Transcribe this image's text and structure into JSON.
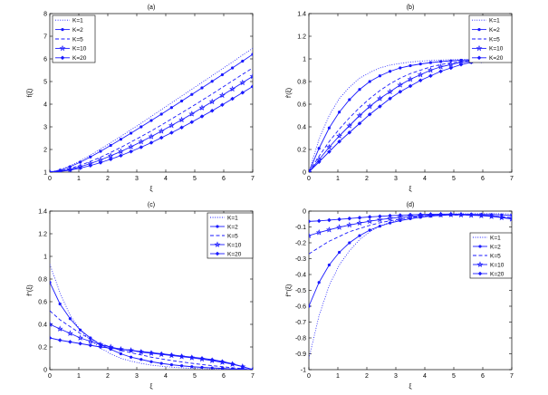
{
  "chart_data": [
    {
      "type": "line",
      "title": "(a)",
      "xlabel": "ξ",
      "ylabel": "f(ξ)",
      "xlim": [
        0,
        7
      ],
      "ylim": [
        1,
        8
      ],
      "xticks": [
        0,
        1,
        2,
        3,
        4,
        5,
        6,
        7
      ],
      "yticks": [
        1,
        2,
        3,
        4,
        5,
        6,
        7,
        8
      ],
      "legend_position": "top-left",
      "grid": false,
      "x": [
        0,
        0.35,
        0.7,
        1.05,
        1.4,
        1.75,
        2.1,
        2.45,
        2.8,
        3.15,
        3.5,
        3.85,
        4.2,
        4.55,
        4.9,
        5.25,
        5.6,
        5.95,
        6.3,
        6.65,
        7.0
      ],
      "series": [
        {
          "name": "K=1",
          "style": "dotted",
          "marker": "none",
          "values": [
            1.0,
            1.1,
            1.28,
            1.5,
            1.75,
            2.02,
            2.3,
            2.58,
            2.87,
            3.16,
            3.46,
            3.76,
            4.06,
            4.36,
            4.66,
            4.96,
            5.26,
            5.56,
            5.86,
            6.17,
            6.47
          ]
        },
        {
          "name": "K=2",
          "style": "solid",
          "marker": "dot",
          "values": [
            1.0,
            1.08,
            1.24,
            1.44,
            1.67,
            1.92,
            2.18,
            2.45,
            2.72,
            3.0,
            3.28,
            3.56,
            3.85,
            4.14,
            4.43,
            4.72,
            5.01,
            5.3,
            5.6,
            5.9,
            6.2
          ]
        },
        {
          "name": "K=5",
          "style": "dashed",
          "marker": "none",
          "values": [
            1.0,
            1.05,
            1.16,
            1.3,
            1.47,
            1.66,
            1.87,
            2.09,
            2.33,
            2.57,
            2.82,
            3.08,
            3.35,
            3.62,
            3.89,
            4.17,
            4.45,
            4.74,
            5.03,
            5.32,
            5.6
          ]
        },
        {
          "name": "K=10",
          "style": "solid",
          "marker": "star",
          "values": [
            1.0,
            1.04,
            1.12,
            1.24,
            1.38,
            1.54,
            1.72,
            1.91,
            2.12,
            2.34,
            2.57,
            2.81,
            3.06,
            3.31,
            3.57,
            3.84,
            4.11,
            4.39,
            4.67,
            4.95,
            5.23
          ]
        },
        {
          "name": "K=20",
          "style": "solid",
          "marker": "diamond",
          "values": [
            1.0,
            1.03,
            1.09,
            1.18,
            1.29,
            1.42,
            1.57,
            1.73,
            1.91,
            2.1,
            2.3,
            2.52,
            2.74,
            2.97,
            3.21,
            3.46,
            3.71,
            3.97,
            4.24,
            4.51,
            4.78
          ]
        }
      ]
    },
    {
      "type": "line",
      "title": "(b)",
      "xlabel": "ξ",
      "ylabel": "f'(ξ)",
      "xlim": [
        0,
        7
      ],
      "ylim": [
        0,
        1.4
      ],
      "xticks": [
        0,
        1,
        2,
        3,
        4,
        5,
        6,
        7
      ],
      "yticks": [
        0,
        0.2,
        0.4,
        0.6,
        0.8,
        1,
        1.2,
        1.4
      ],
      "legend_position": "top-right",
      "grid": false,
      "x": [
        0,
        0.35,
        0.7,
        1.05,
        1.4,
        1.75,
        2.1,
        2.45,
        2.8,
        3.15,
        3.5,
        3.85,
        4.2,
        4.55,
        4.9,
        5.25,
        5.6,
        5.95,
        6.3,
        6.65,
        7.0
      ],
      "series": [
        {
          "name": "K=1",
          "style": "dotted",
          "marker": "none",
          "values": [
            0.0,
            0.29,
            0.5,
            0.65,
            0.75,
            0.83,
            0.88,
            0.92,
            0.945,
            0.96,
            0.972,
            0.98,
            0.986,
            0.99,
            0.993,
            0.995,
            0.997,
            0.998,
            0.999,
            0.9995,
            1.0
          ]
        },
        {
          "name": "K=2",
          "style": "solid",
          "marker": "dot",
          "values": [
            0.0,
            0.21,
            0.39,
            0.53,
            0.64,
            0.73,
            0.8,
            0.85,
            0.89,
            0.92,
            0.94,
            0.955,
            0.967,
            0.976,
            0.983,
            0.988,
            0.992,
            0.995,
            0.997,
            0.999,
            1.0
          ]
        },
        {
          "name": "K=5",
          "style": "dashed",
          "marker": "none",
          "values": [
            0.0,
            0.14,
            0.27,
            0.38,
            0.48,
            0.57,
            0.65,
            0.72,
            0.78,
            0.83,
            0.87,
            0.9,
            0.93,
            0.95,
            0.965,
            0.976,
            0.985,
            0.991,
            0.995,
            0.998,
            1.0
          ]
        },
        {
          "name": "K=10",
          "style": "solid",
          "marker": "star",
          "values": [
            0.0,
            0.11,
            0.22,
            0.32,
            0.41,
            0.5,
            0.58,
            0.65,
            0.71,
            0.77,
            0.82,
            0.86,
            0.9,
            0.93,
            0.95,
            0.97,
            0.98,
            0.988,
            0.994,
            0.998,
            1.0
          ]
        },
        {
          "name": "K=20",
          "style": "solid",
          "marker": "diamond",
          "values": [
            0.0,
            0.09,
            0.18,
            0.27,
            0.35,
            0.43,
            0.51,
            0.58,
            0.65,
            0.71,
            0.76,
            0.81,
            0.85,
            0.89,
            0.92,
            0.95,
            0.97,
            0.98,
            0.99,
            0.997,
            1.0
          ]
        }
      ]
    },
    {
      "type": "line",
      "title": "(c)",
      "xlabel": "ξ",
      "ylabel": "f''(ξ)",
      "xlim": [
        0,
        7
      ],
      "ylim": [
        0,
        1.4
      ],
      "xticks": [
        0,
        1,
        2,
        3,
        4,
        5,
        6,
        7
      ],
      "yticks": [
        0,
        0.2,
        0.4,
        0.6,
        0.8,
        1,
        1.2,
        1.4
      ],
      "legend_position": "top-right",
      "grid": false,
      "x": [
        0,
        0.35,
        0.7,
        1.05,
        1.4,
        1.75,
        2.1,
        2.45,
        2.8,
        3.15,
        3.5,
        3.85,
        4.2,
        4.55,
        4.9,
        5.25,
        5.6,
        5.95,
        6.3,
        6.65,
        7.0
      ],
      "series": [
        {
          "name": "K=1",
          "style": "dotted",
          "marker": "none",
          "values": [
            0.93,
            0.68,
            0.48,
            0.35,
            0.26,
            0.19,
            0.14,
            0.1,
            0.075,
            0.055,
            0.04,
            0.03,
            0.022,
            0.016,
            0.012,
            0.009,
            0.006,
            0.004,
            0.003,
            0.002,
            0.0
          ]
        },
        {
          "name": "K=2",
          "style": "solid",
          "marker": "dot",
          "values": [
            0.77,
            0.58,
            0.45,
            0.35,
            0.28,
            0.22,
            0.18,
            0.14,
            0.11,
            0.09,
            0.07,
            0.055,
            0.043,
            0.034,
            0.026,
            0.02,
            0.015,
            0.011,
            0.007,
            0.004,
            0.0
          ]
        },
        {
          "name": "K=5",
          "style": "dashed",
          "marker": "none",
          "values": [
            0.52,
            0.44,
            0.38,
            0.32,
            0.27,
            0.23,
            0.2,
            0.17,
            0.15,
            0.13,
            0.11,
            0.095,
            0.08,
            0.068,
            0.056,
            0.045,
            0.035,
            0.026,
            0.017,
            0.009,
            0.0
          ]
        },
        {
          "name": "K=10",
          "style": "solid",
          "marker": "star",
          "values": [
            0.4,
            0.36,
            0.32,
            0.28,
            0.25,
            0.22,
            0.2,
            0.18,
            0.17,
            0.155,
            0.145,
            0.135,
            0.125,
            0.115,
            0.105,
            0.093,
            0.08,
            0.065,
            0.048,
            0.027,
            0.0
          ]
        },
        {
          "name": "K=20",
          "style": "solid",
          "marker": "diamond",
          "values": [
            0.28,
            0.26,
            0.245,
            0.23,
            0.215,
            0.2,
            0.19,
            0.18,
            0.17,
            0.16,
            0.15,
            0.14,
            0.13,
            0.12,
            0.11,
            0.1,
            0.088,
            0.072,
            0.052,
            0.028,
            0.0
          ]
        }
      ]
    },
    {
      "type": "line",
      "title": "(d)",
      "xlabel": "ξ",
      "ylabel": "f'''(ξ)",
      "xlim": [
        0,
        7
      ],
      "ylim": [
        -1,
        0
      ],
      "xticks": [
        0,
        1,
        2,
        3,
        4,
        5,
        6,
        7
      ],
      "yticks": [
        -1,
        -0.9,
        -0.8,
        -0.7,
        -0.6,
        -0.5,
        -0.4,
        -0.3,
        -0.2,
        -0.1,
        0
      ],
      "legend_position": "center-right",
      "grid": false,
      "x": [
        0,
        0.35,
        0.7,
        1.05,
        1.4,
        1.75,
        2.1,
        2.45,
        2.8,
        3.15,
        3.5,
        3.85,
        4.2,
        4.55,
        4.9,
        5.25,
        5.6,
        5.95,
        6.3,
        6.65,
        7.0
      ],
      "series": [
        {
          "name": "K=1",
          "style": "dotted",
          "marker": "none",
          "values": [
            -0.93,
            -0.66,
            -0.47,
            -0.34,
            -0.25,
            -0.18,
            -0.13,
            -0.095,
            -0.07,
            -0.052,
            -0.04,
            -0.031,
            -0.025,
            -0.021,
            -0.018,
            -0.017,
            -0.016,
            -0.016,
            -0.016,
            -0.017,
            -0.018
          ]
        },
        {
          "name": "K=2",
          "style": "solid",
          "marker": "dot",
          "values": [
            -0.6,
            -0.45,
            -0.34,
            -0.26,
            -0.2,
            -0.155,
            -0.12,
            -0.095,
            -0.075,
            -0.06,
            -0.048,
            -0.039,
            -0.032,
            -0.027,
            -0.024,
            -0.022,
            -0.021,
            -0.021,
            -0.022,
            -0.024,
            -0.027
          ]
        },
        {
          "name": "K=5",
          "style": "dashed",
          "marker": "none",
          "values": [
            -0.27,
            -0.23,
            -0.19,
            -0.16,
            -0.13,
            -0.11,
            -0.09,
            -0.074,
            -0.061,
            -0.05,
            -0.042,
            -0.035,
            -0.03,
            -0.027,
            -0.025,
            -0.025,
            -0.026,
            -0.028,
            -0.031,
            -0.035,
            -0.04
          ]
        },
        {
          "name": "K=10",
          "style": "solid",
          "marker": "star",
          "values": [
            -0.155,
            -0.135,
            -0.118,
            -0.102,
            -0.088,
            -0.075,
            -0.064,
            -0.054,
            -0.046,
            -0.039,
            -0.033,
            -0.029,
            -0.026,
            -0.024,
            -0.023,
            -0.024,
            -0.026,
            -0.029,
            -0.034,
            -0.041,
            -0.05
          ]
        },
        {
          "name": "K=20",
          "style": "solid",
          "marker": "diamond",
          "values": [
            -0.065,
            -0.062,
            -0.057,
            -0.052,
            -0.047,
            -0.042,
            -0.037,
            -0.033,
            -0.029,
            -0.026,
            -0.023,
            -0.021,
            -0.02,
            -0.019,
            -0.019,
            -0.02,
            -0.022,
            -0.025,
            -0.03,
            -0.038,
            -0.048
          ]
        }
      ]
    }
  ],
  "colors": {
    "line": "#1a1aff",
    "axis": "#000000",
    "background": "#ffffff"
  }
}
